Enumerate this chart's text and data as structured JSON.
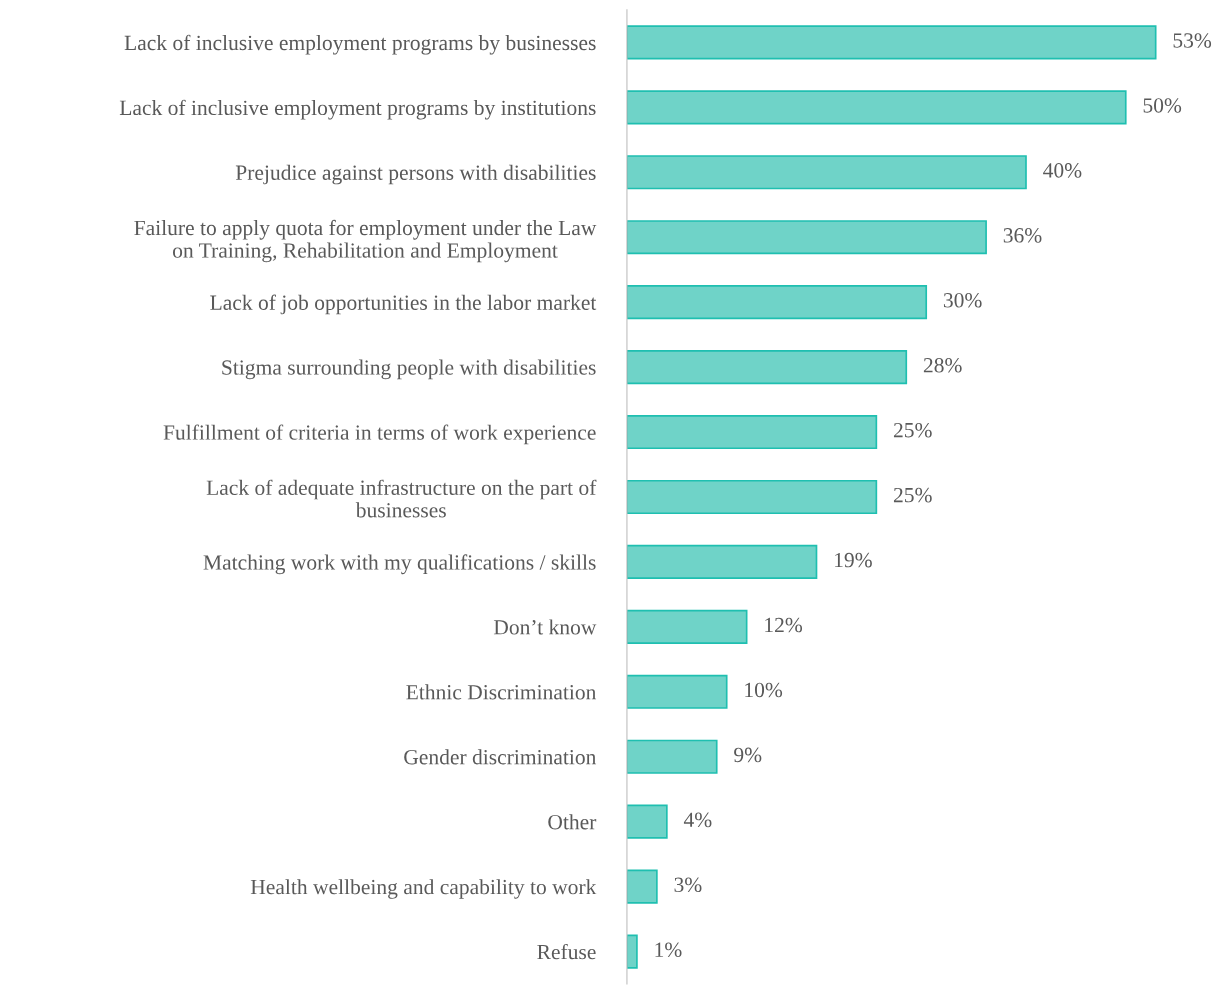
{
  "chart_data": {
    "type": "bar",
    "orientation": "horizontal",
    "categories": [
      "Lack of inclusive employment programs by businesses",
      "Lack of inclusive employment programs by institutions",
      "Prejudice against persons with disabilities",
      "Failure to apply quota for employment under the Law\non Training, Rehabilitation and Employment",
      "Lack of job opportunities in the labor market",
      "Stigma surrounding people with disabilities",
      "Fulfillment of criteria in terms of work experience",
      "Lack of adequate infrastructure on the part of\nbusinesses",
      "Matching work with my qualifications / skills",
      "Don’t know",
      "Ethnic Discrimination",
      "Gender discrimination",
      "Other",
      "Health wellbeing and capability to work",
      "Refuse"
    ],
    "values": [
      53,
      50,
      40,
      36,
      30,
      28,
      25,
      25,
      19,
      12,
      10,
      9,
      4,
      3,
      1
    ],
    "value_labels": [
      "53%",
      "50%",
      "40%",
      "36%",
      "30%",
      "28%",
      "25%",
      "25%",
      "19%",
      "12%",
      "10%",
      "9%",
      "4%",
      "3%",
      "1%"
    ],
    "color": "#6fd3c8",
    "grid": false,
    "legend": false
  }
}
